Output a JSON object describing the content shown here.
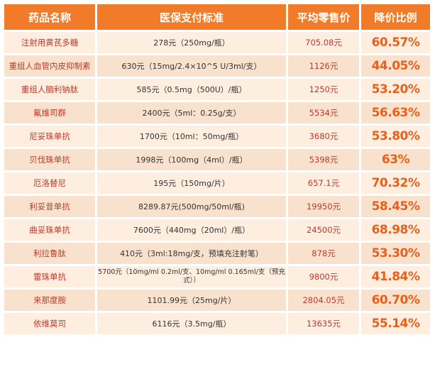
{
  "table": {
    "headers": [
      "药品名称",
      "医保支付标准",
      "平均零售价",
      "降价比例"
    ],
    "rows": [
      {
        "name": "注射用黄芪多糖",
        "standard": "278元（250mg/瓶）",
        "price": "705.08元",
        "percent": "60.57%"
      },
      {
        "name": "重组人血管内皮抑制素",
        "standard": "630元（15mg/2.4×10^5 U/3ml/支）",
        "price": "1126元",
        "percent": "44.05%"
      },
      {
        "name": "重组人脑利钠肽",
        "standard": "585元（0.5mg（500U）/瓶）",
        "price": "1250元",
        "percent": "53.20%"
      },
      {
        "name": "氟维司群",
        "standard": "2400元（5ml：0.25g/支）",
        "price": "5534元",
        "percent": "56.63%"
      },
      {
        "name": "尼妥珠单抗",
        "standard": "1700元（10ml：50mg/瓶）",
        "price": "3680元",
        "percent": "53.80%"
      },
      {
        "name": "贝伐珠单抗",
        "standard": "1998元（100mg（4ml）/瓶）",
        "price": "5398元",
        "percent": "63%"
      },
      {
        "name": "厄洛替尼",
        "standard": "195元（150mg/片）",
        "price": "657.1元",
        "percent": "70.32%"
      },
      {
        "name": "利妥昔单抗",
        "standard": "8289.87元(500mg/50ml/瓶)",
        "price": "19950元",
        "percent": "58.45%"
      },
      {
        "name": "曲妥珠单抗",
        "standard": "7600元（440mg（20ml）/瓶）",
        "price": "24500元",
        "percent": "68.98%"
      },
      {
        "name": "利拉鲁肽",
        "standard": "410元（3ml:18mg/支，预填充注射笔）",
        "price": "878元",
        "percent": "53.30%"
      },
      {
        "name": "雷珠单抗",
        "standard": "5700元（10mg/ml 0.2ml/支、10mg/ml 0.165ml/支（预充式））",
        "price": "9800元",
        "percent": "41.84%"
      },
      {
        "name": "来那度胺",
        "standard": "1101.99元（25mg/片）",
        "price": "2804.05元",
        "percent": "60.70%"
      },
      {
        "name": "依维莫司",
        "standard": "6116元（3.5mg/瓶）",
        "price": "13635元",
        "percent": "55.14%"
      }
    ]
  }
}
